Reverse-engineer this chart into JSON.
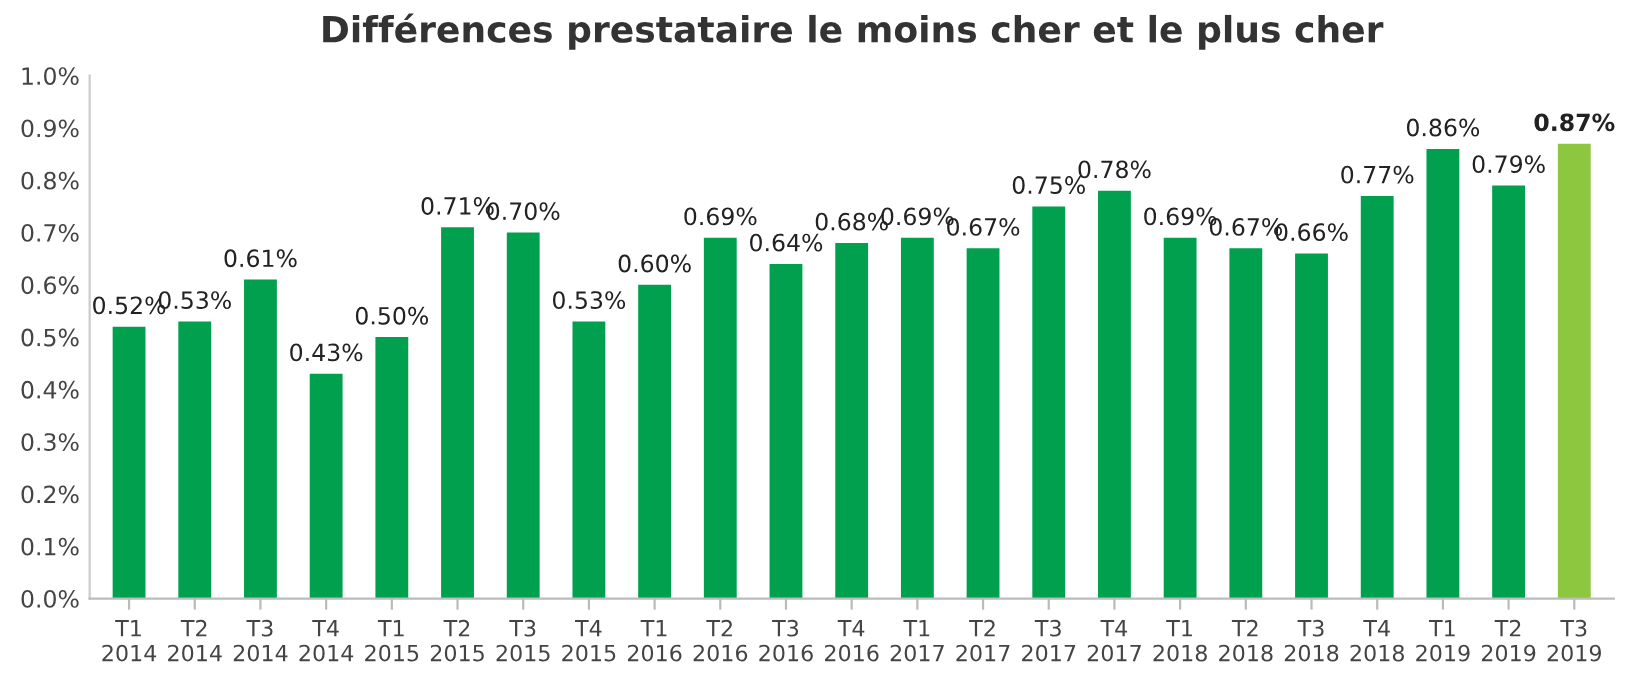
{
  "chart_data": {
    "type": "bar",
    "title": "Différences prestataire le moins cher et le plus cher",
    "categories": [
      "T1\n2014",
      "T2\n2014",
      "T3\n2014",
      "T4\n2014",
      "T1\n2015",
      "T2\n2015",
      "T3\n2015",
      "T4\n2015",
      "T1\n2016",
      "T2\n2016",
      "T3\n2016",
      "T4\n2016",
      "T1\n2017",
      "T2\n2017",
      "T3\n2017",
      "T4\n2017",
      "T1\n2018",
      "T2\n2018",
      "T3\n2018",
      "T4\n2018",
      "T1\n2019",
      "T2\n2019",
      "T3\n2019"
    ],
    "values": [
      0.52,
      0.53,
      0.61,
      0.43,
      0.5,
      0.71,
      0.7,
      0.53,
      0.6,
      0.69,
      0.64,
      0.68,
      0.69,
      0.67,
      0.75,
      0.78,
      0.69,
      0.67,
      0.66,
      0.77,
      0.86,
      0.79,
      0.87
    ],
    "value_labels": [
      "0.52%",
      "0.53%",
      "0.61%",
      "0.43%",
      "0.50%",
      "0.71%",
      "0.70%",
      "0.53%",
      "0.60%",
      "0.69%",
      "0.64%",
      "0.68%",
      "0.69%",
      "0.67%",
      "0.75%",
      "0.78%",
      "0.69%",
      "0.67%",
      "0.66%",
      "0.77%",
      "0.86%",
      "0.79%",
      "0.87%"
    ],
    "colors": [
      "#00a04f",
      "#00a04f",
      "#00a04f",
      "#00a04f",
      "#00a04f",
      "#00a04f",
      "#00a04f",
      "#00a04f",
      "#00a04f",
      "#00a04f",
      "#00a04f",
      "#00a04f",
      "#00a04f",
      "#00a04f",
      "#00a04f",
      "#00a04f",
      "#00a04f",
      "#00a04f",
      "#00a04f",
      "#00a04f",
      "#00a04f",
      "#00a04f",
      "#8dc63f"
    ],
    "ylim": [
      0,
      1.0
    ],
    "yticks": [
      {
        "value": 0,
        "label": "0.0%"
      },
      {
        "value": 0.1,
        "label": "0.1%"
      },
      {
        "value": 0.2,
        "label": "0.2%"
      },
      {
        "value": 0.3,
        "label": "0.3%"
      },
      {
        "value": 0.4,
        "label": "0.4%"
      },
      {
        "value": 0.5,
        "label": "0.5%"
      },
      {
        "value": 0.6,
        "label": "0.6%"
      },
      {
        "value": 0.7,
        "label": "0.7%"
      },
      {
        "value": 0.8,
        "label": "0.8%"
      },
      {
        "value": 0.9,
        "label": "0.9%"
      },
      {
        "value": 1.0,
        "label": "1.0%"
      }
    ],
    "grid": false,
    "legend": false
  }
}
